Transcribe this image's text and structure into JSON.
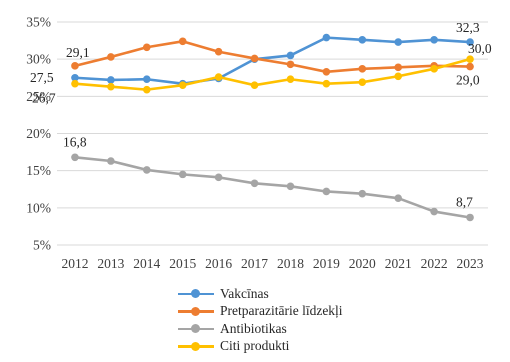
{
  "chart_data": {
    "type": "line",
    "categories": [
      "2012",
      "2013",
      "2014",
      "2015",
      "2016",
      "2017",
      "2018",
      "2019",
      "2020",
      "2021",
      "2022",
      "2023"
    ],
    "ylim": [
      5,
      35
    ],
    "yticks": [
      5,
      10,
      15,
      20,
      25,
      30,
      35
    ],
    "ytick_labels": [
      "5%",
      "10%",
      "15%",
      "20%",
      "25%",
      "30%",
      "35%"
    ],
    "grid": "horizontal",
    "legend_position": "bottom",
    "series": [
      {
        "name": "Vakcīnas",
        "color": "#4f93d4",
        "values": [
          27.5,
          27.2,
          27.3,
          26.7,
          27.4,
          30.0,
          30.5,
          32.9,
          32.6,
          32.3,
          32.6,
          32.3
        ]
      },
      {
        "name": "Pretparazitārie līdzekļi",
        "color": "#ed7d31",
        "values": [
          29.1,
          30.3,
          31.6,
          32.4,
          31.0,
          30.1,
          29.3,
          28.3,
          28.7,
          28.9,
          29.1,
          29.0
        ]
      },
      {
        "name": "Antibiotikas",
        "color": "#a5a5a5",
        "values": [
          16.8,
          16.3,
          15.1,
          14.5,
          14.1,
          13.3,
          12.9,
          12.2,
          11.9,
          11.3,
          9.5,
          8.7
        ]
      },
      {
        "name": "Citi produkti",
        "color": "#ffc000",
        "values": [
          26.7,
          26.3,
          25.9,
          26.5,
          27.6,
          26.5,
          27.3,
          26.7,
          26.9,
          27.7,
          28.7,
          30.0
        ]
      }
    ],
    "data_labels": [
      {
        "series": 0,
        "index": 0,
        "text": "27,5"
      },
      {
        "series": 0,
        "index": 11,
        "text": "32,3"
      },
      {
        "series": 1,
        "index": 0,
        "text": "29,1"
      },
      {
        "series": 1,
        "index": 11,
        "text": "29,0"
      },
      {
        "series": 2,
        "index": 0,
        "text": "16,8"
      },
      {
        "series": 2,
        "index": 11,
        "text": "8,7"
      },
      {
        "series": 3,
        "index": 0,
        "text": "26,7"
      },
      {
        "series": 3,
        "index": 11,
        "text": "30,0"
      }
    ]
  }
}
